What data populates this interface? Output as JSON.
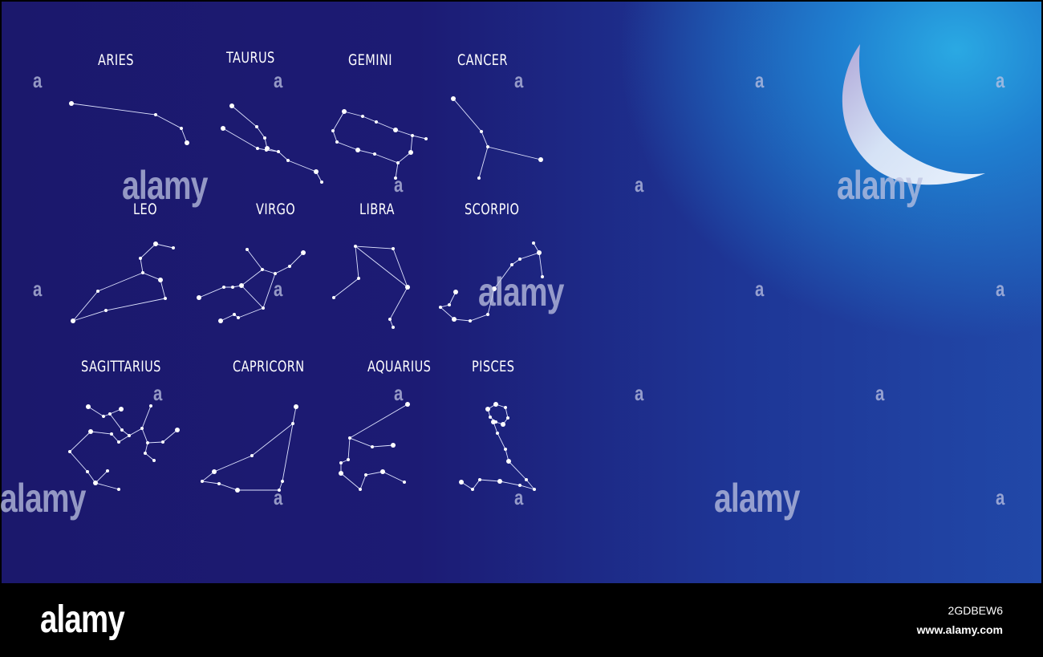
{
  "constellations": [
    {
      "name": "ARIES"
    },
    {
      "name": "TAURUS"
    },
    {
      "name": "GEMINI"
    },
    {
      "name": "CANCER"
    },
    {
      "name": "LEO"
    },
    {
      "name": "VIRGO"
    },
    {
      "name": "LIBRA"
    },
    {
      "name": "SCORPIO"
    },
    {
      "name": "SAGITTARIUS"
    },
    {
      "name": "CAPRICORN"
    },
    {
      "name": "AQUARIUS"
    },
    {
      "name": "PISCES"
    }
  ],
  "watermark": {
    "word": "alamy",
    "letter": "a"
  },
  "footer": {
    "logo": "alamy",
    "image_id": "2GDBEW6",
    "url": "www.alamy.com"
  },
  "colors": {
    "sky_dark": "#1b186c",
    "sky_light": "#2aa9e3",
    "star": "#ffffff"
  }
}
